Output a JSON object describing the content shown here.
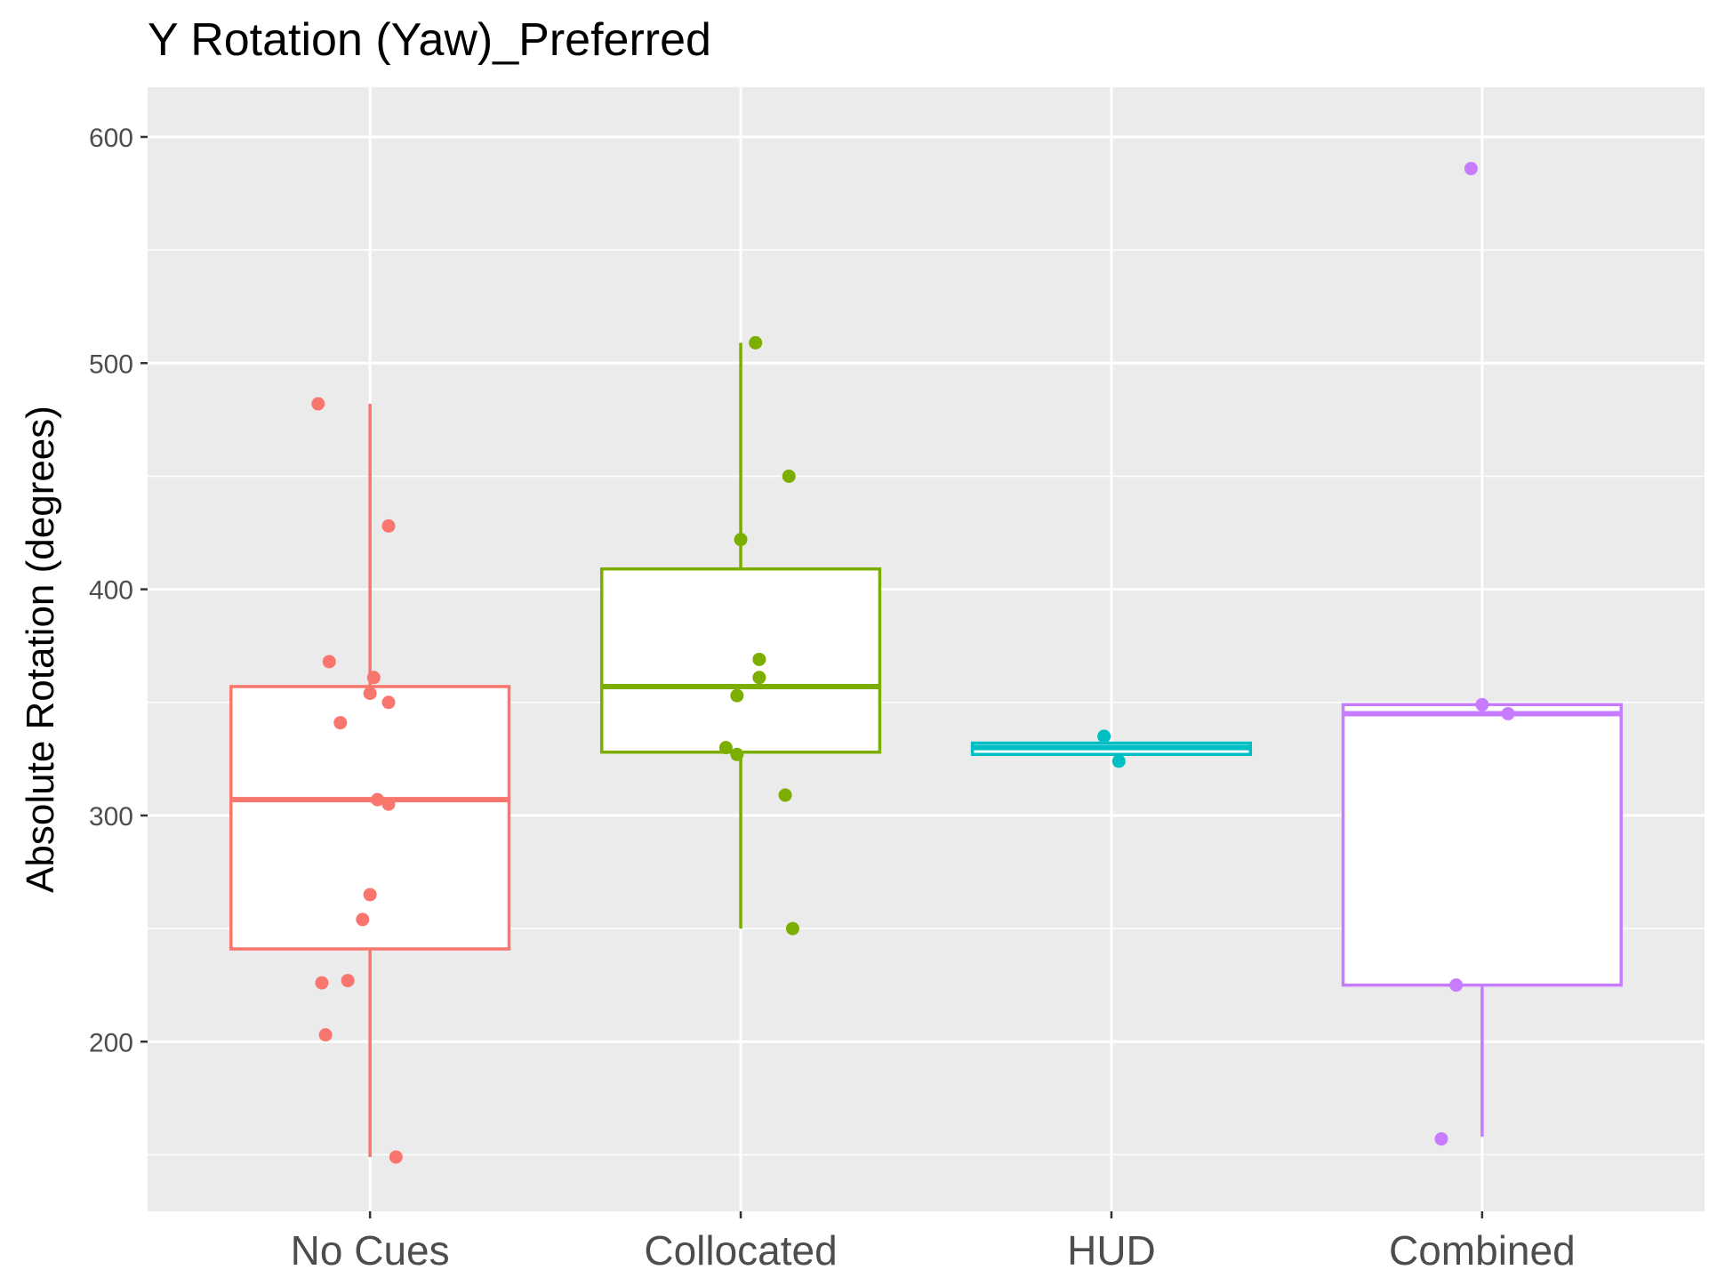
{
  "chart_data": {
    "type": "boxplot",
    "title": "Y Rotation (Yaw)_Preferred",
    "xlabel": "",
    "ylabel": "Absolute Rotation (degrees)",
    "ylim": [
      125,
      622
    ],
    "yticks": [
      200,
      300,
      400,
      500,
      600
    ],
    "grid": true,
    "legend": "none",
    "categories": [
      "No Cues",
      "Collocated",
      "HUD",
      "Combined"
    ],
    "groups": [
      {
        "name": "No Cues",
        "color": "#F8766D",
        "whisker_low": 149,
        "q1": 241,
        "median": 307,
        "q3": 357,
        "whisker_high": 482,
        "points": [
          [
            -0.14,
            482
          ],
          [
            0.05,
            428
          ],
          [
            -0.11,
            368
          ],
          [
            0.01,
            361
          ],
          [
            0.0,
            354
          ],
          [
            0.05,
            350
          ],
          [
            -0.08,
            341
          ],
          [
            0.02,
            307
          ],
          [
            0.05,
            305
          ],
          [
            0.0,
            265
          ],
          [
            -0.02,
            254
          ],
          [
            -0.06,
            227
          ],
          [
            -0.13,
            226
          ],
          [
            -0.12,
            203
          ],
          [
            0.07,
            149
          ]
        ]
      },
      {
        "name": "Collocated",
        "color": "#7CAE00",
        "whisker_low": 250,
        "q1": 328,
        "median": 357,
        "q3": 409,
        "whisker_high": 509,
        "points": [
          [
            0.04,
            509
          ],
          [
            0.13,
            450
          ],
          [
            0.0,
            422
          ],
          [
            0.05,
            369
          ],
          [
            0.05,
            361
          ],
          [
            -0.01,
            353
          ],
          [
            -0.04,
            330
          ],
          [
            -0.01,
            327
          ],
          [
            0.12,
            309
          ],
          [
            0.14,
            250
          ]
        ]
      },
      {
        "name": "HUD",
        "color": "#00BFC4",
        "whisker_low": 327,
        "q1": 327,
        "median": 330,
        "q3": 332,
        "whisker_high": 332,
        "points": [
          [
            -0.02,
            335
          ],
          [
            0.02,
            324
          ]
        ]
      },
      {
        "name": "Combined",
        "color": "#C77CFF",
        "whisker_low": 158,
        "q1": 225,
        "median": 345,
        "q3": 349,
        "whisker_high": 349,
        "points": [
          [
            -0.03,
            586
          ],
          [
            0.0,
            349
          ],
          [
            0.07,
            345
          ],
          [
            -0.07,
            225
          ],
          [
            -0.11,
            157
          ]
        ]
      }
    ]
  }
}
